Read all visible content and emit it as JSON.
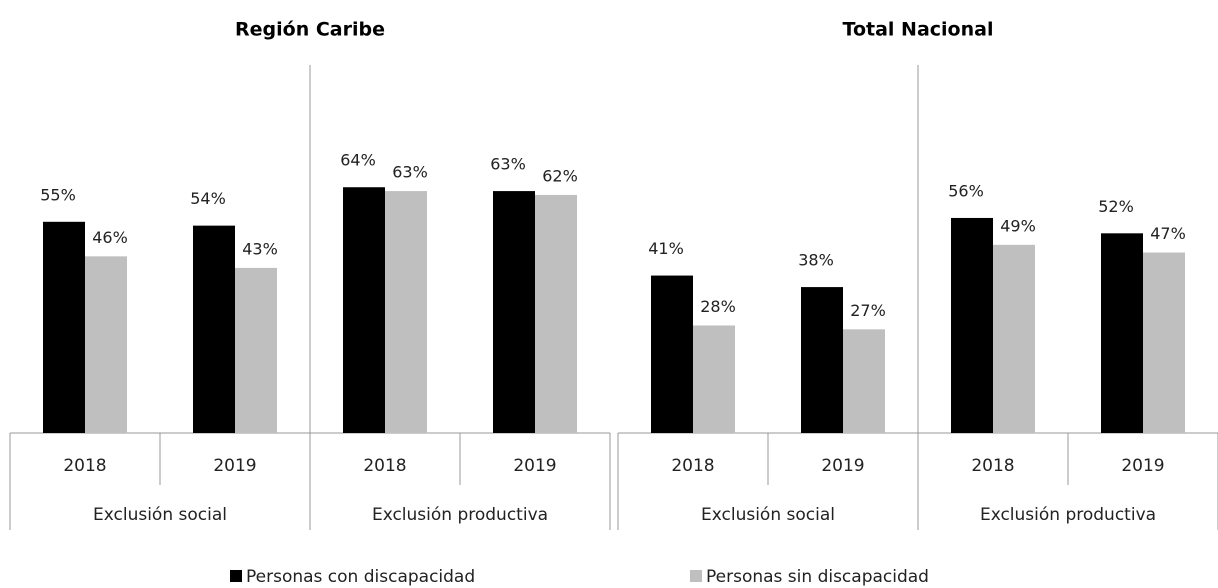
{
  "chart_data": [
    {
      "type": "bar",
      "title": "Región Caribe",
      "categories": [
        "2018",
        "2019",
        "2018",
        "2019"
      ],
      "groups": [
        "Exclusión social",
        "Exclusión productiva"
      ],
      "ylim": [
        0,
        100
      ],
      "series": [
        {
          "name": "Personas con discapacidad",
          "color": "#000000",
          "values": [
            55,
            54,
            64,
            63
          ],
          "value_labels": [
            "55%",
            "54%",
            "64%",
            "63%"
          ]
        },
        {
          "name": "Personas sin discapacidad",
          "color": "#bfbfbf",
          "values": [
            46,
            43,
            63,
            62
          ],
          "value_labels": [
            "46%",
            "43%",
            "63%",
            "62%"
          ]
        }
      ]
    },
    {
      "type": "bar",
      "title": "Total Nacional",
      "categories": [
        "2018",
        "2019",
        "2018",
        "2019"
      ],
      "groups": [
        "Exclusión social",
        "Exclusión productiva"
      ],
      "ylim": [
        0,
        100
      ],
      "series": [
        {
          "color": "#000000",
          "values": [
            41,
            38,
            56,
            52
          ],
          "value_labels": [
            "41%",
            "38%",
            "56%",
            "52%"
          ]
        },
        {
          "color": "#bfbfbf",
          "values": [
            28,
            27,
            49,
            47
          ],
          "value_labels": [
            "28%",
            "27%",
            "49%",
            "47%"
          ]
        }
      ]
    }
  ]
}
